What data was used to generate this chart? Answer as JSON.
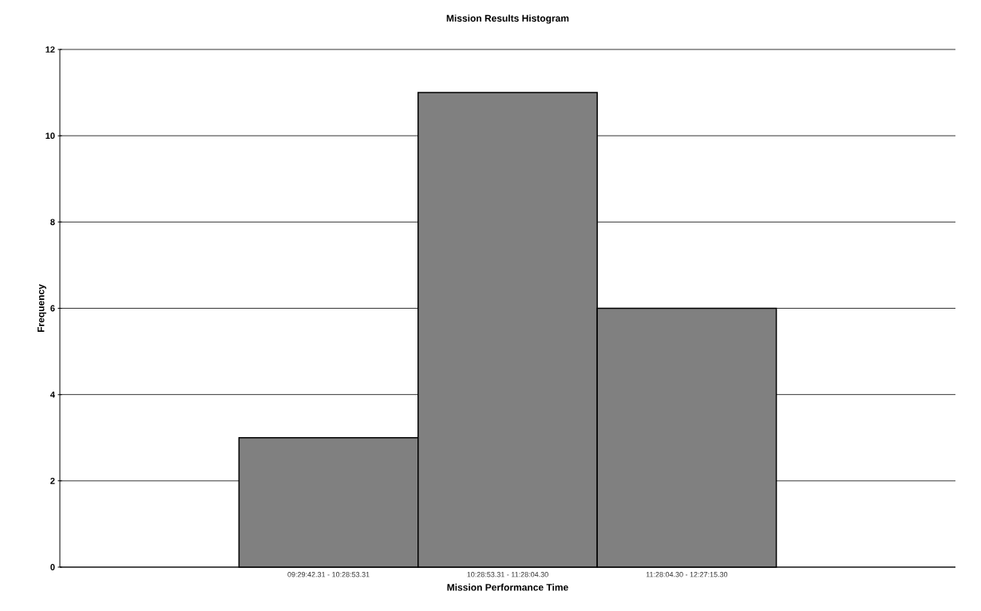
{
  "chart_data": {
    "type": "bar",
    "title": "Mission Results Histogram",
    "xlabel": "Mission Performance Time",
    "ylabel": "Frequency",
    "categories": [
      null,
      "09:29:42.31 - 10:28:53.31",
      "10:28:53.31 - 11:28:04.30",
      "11:28:04.30 - 12:27:15.30",
      null
    ],
    "values": [
      null,
      3,
      11,
      6,
      null
    ],
    "color": "#808080",
    "ylim": [
      0,
      12
    ],
    "yticks": [
      0,
      2,
      4,
      6,
      8,
      10,
      12
    ],
    "grid": "y"
  }
}
